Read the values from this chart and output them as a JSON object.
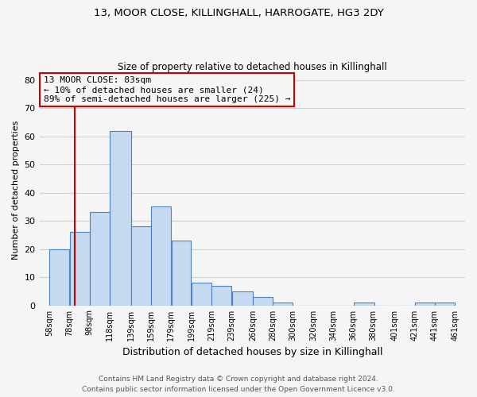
{
  "title1": "13, MOOR CLOSE, KILLINGHALL, HARROGATE, HG3 2DY",
  "title2": "Size of property relative to detached houses in Killinghall",
  "xlabel": "Distribution of detached houses by size in Killinghall",
  "ylabel": "Number of detached properties",
  "bar_left_edges": [
    58,
    78,
    98,
    118,
    139,
    159,
    179,
    199,
    219,
    239,
    260,
    280,
    300,
    320,
    340,
    360,
    380,
    401,
    421,
    441
  ],
  "bar_heights": [
    20,
    26,
    33,
    62,
    28,
    35,
    23,
    8,
    7,
    5,
    3,
    1,
    0,
    0,
    0,
    1,
    0,
    0,
    1,
    1
  ],
  "bar_widths": [
    20,
    20,
    20,
    21,
    20,
    20,
    20,
    20,
    20,
    21,
    20,
    20,
    20,
    20,
    20,
    21,
    20,
    20,
    20,
    20
  ],
  "bar_color": "#c5d9f1",
  "bar_edge_color": "#4f81bd",
  "property_line_x": 83,
  "property_line_color": "#cc0000",
  "annotation_text": "13 MOOR CLOSE: 83sqm\n← 10% of detached houses are smaller (24)\n89% of semi-detached houses are larger (225) →",
  "annotation_box_edge_color": "#cc0000",
  "ylim": [
    0,
    82
  ],
  "yticks": [
    0,
    10,
    20,
    30,
    40,
    50,
    60,
    70,
    80
  ],
  "xtick_labels": [
    "58sqm",
    "78sqm",
    "98sqm",
    "118sqm",
    "139sqm",
    "159sqm",
    "179sqm",
    "199sqm",
    "219sqm",
    "239sqm",
    "260sqm",
    "280sqm",
    "300sqm",
    "320sqm",
    "340sqm",
    "360sqm",
    "380sqm",
    "401sqm",
    "421sqm",
    "441sqm",
    "461sqm"
  ],
  "xtick_positions": [
    58,
    78,
    98,
    118,
    139,
    159,
    179,
    199,
    219,
    239,
    260,
    280,
    300,
    320,
    340,
    360,
    380,
    401,
    421,
    441,
    461
  ],
  "xlim_left": 48,
  "xlim_right": 471,
  "footer_line1": "Contains HM Land Registry data © Crown copyright and database right 2024.",
  "footer_line2": "Contains public sector information licensed under the Open Government Licence v3.0.",
  "grid_color": "#d0d0d0",
  "background_color": "#f5f5f5",
  "title1_fontsize": 9.5,
  "title2_fontsize": 8.5,
  "ylabel_fontsize": 8,
  "xlabel_fontsize": 9,
  "annotation_fontsize": 8,
  "footer_fontsize": 6.5,
  "footer_color": "#555555"
}
